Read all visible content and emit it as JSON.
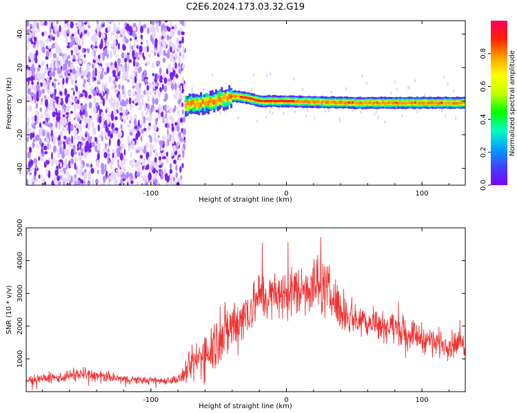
{
  "figure_title": "C2E6.2024.173.03.32.G19",
  "chart_data": [
    {
      "type": "heatmap",
      "xlabel": "Height of straight line (km)",
      "ylabel": "Frequency (Hz)",
      "xlim": [
        -192,
        132
      ],
      "ylim": [
        -50,
        48
      ],
      "xticks": [
        -100,
        0,
        100
      ],
      "yticks": [
        -40,
        -20,
        0,
        20,
        40
      ],
      "colorbar": {
        "label": "Normalized spectral amplitude",
        "range": [
          0.0,
          1.0
        ],
        "ticks": [
          0.0,
          0.2,
          0.4,
          0.6,
          0.8
        ],
        "colormap": [
          "#7f00ff",
          "#4040ff",
          "#00a0ff",
          "#00ffc0",
          "#00ff00",
          "#c0ff00",
          "#ffff00",
          "#ffa000",
          "#ff2000",
          "#ff0060"
        ]
      },
      "band": {
        "noise_region_x": [
          -192,
          -75
        ],
        "center_freq_points": [
          [
            -75,
            -2
          ],
          [
            -60,
            -1
          ],
          [
            -50,
            1
          ],
          [
            -40,
            3
          ],
          [
            -30,
            2
          ],
          [
            -20,
            0
          ],
          [
            0,
            0
          ],
          [
            50,
            -1
          ],
          [
            132,
            -1
          ]
        ],
        "peak_amplitude": 0.95,
        "peak_x_range": [
          -35,
          5
        ]
      },
      "grid": false
    },
    {
      "type": "line",
      "xlabel": "Height of straight line (km)",
      "ylabel": "SNR (10 * v/v)",
      "xlim": [
        -192,
        132
      ],
      "ylim": [
        0,
        5000
      ],
      "xticks": [
        -100,
        0,
        100
      ],
      "yticks": [
        1000,
        2000,
        3000,
        4000,
        5000
      ],
      "series": [
        {
          "color": "#ee3333",
          "envelope": {
            "x": [
              -192,
              -170,
              -150,
              -140,
              -120,
              -100,
              -85,
              -78,
              -70,
              -60,
              -50,
              -40,
              -30,
              -20,
              -10,
              0,
              10,
              20,
              30,
              40,
              50,
              60,
              70,
              80,
              90,
              100,
              110,
              120,
              132
            ],
            "mean": [
              350,
              420,
              550,
              480,
              380,
              330,
              350,
              400,
              800,
              1200,
              1600,
              2000,
              2400,
              2900,
              2900,
              3000,
              3100,
              3300,
              3100,
              2500,
              2250,
              2150,
              2050,
              1950,
              1800,
              1650,
              1500,
              1450,
              1450
            ],
            "spread": [
              130,
              150,
              200,
              160,
              120,
              100,
              110,
              160,
              500,
              700,
              800,
              800,
              750,
              700,
              650,
              700,
              750,
              800,
              750,
              600,
              500,
              450,
              450,
              420,
              400,
              400,
              380,
              370,
              350
            ]
          }
        }
      ],
      "grid": false
    }
  ]
}
